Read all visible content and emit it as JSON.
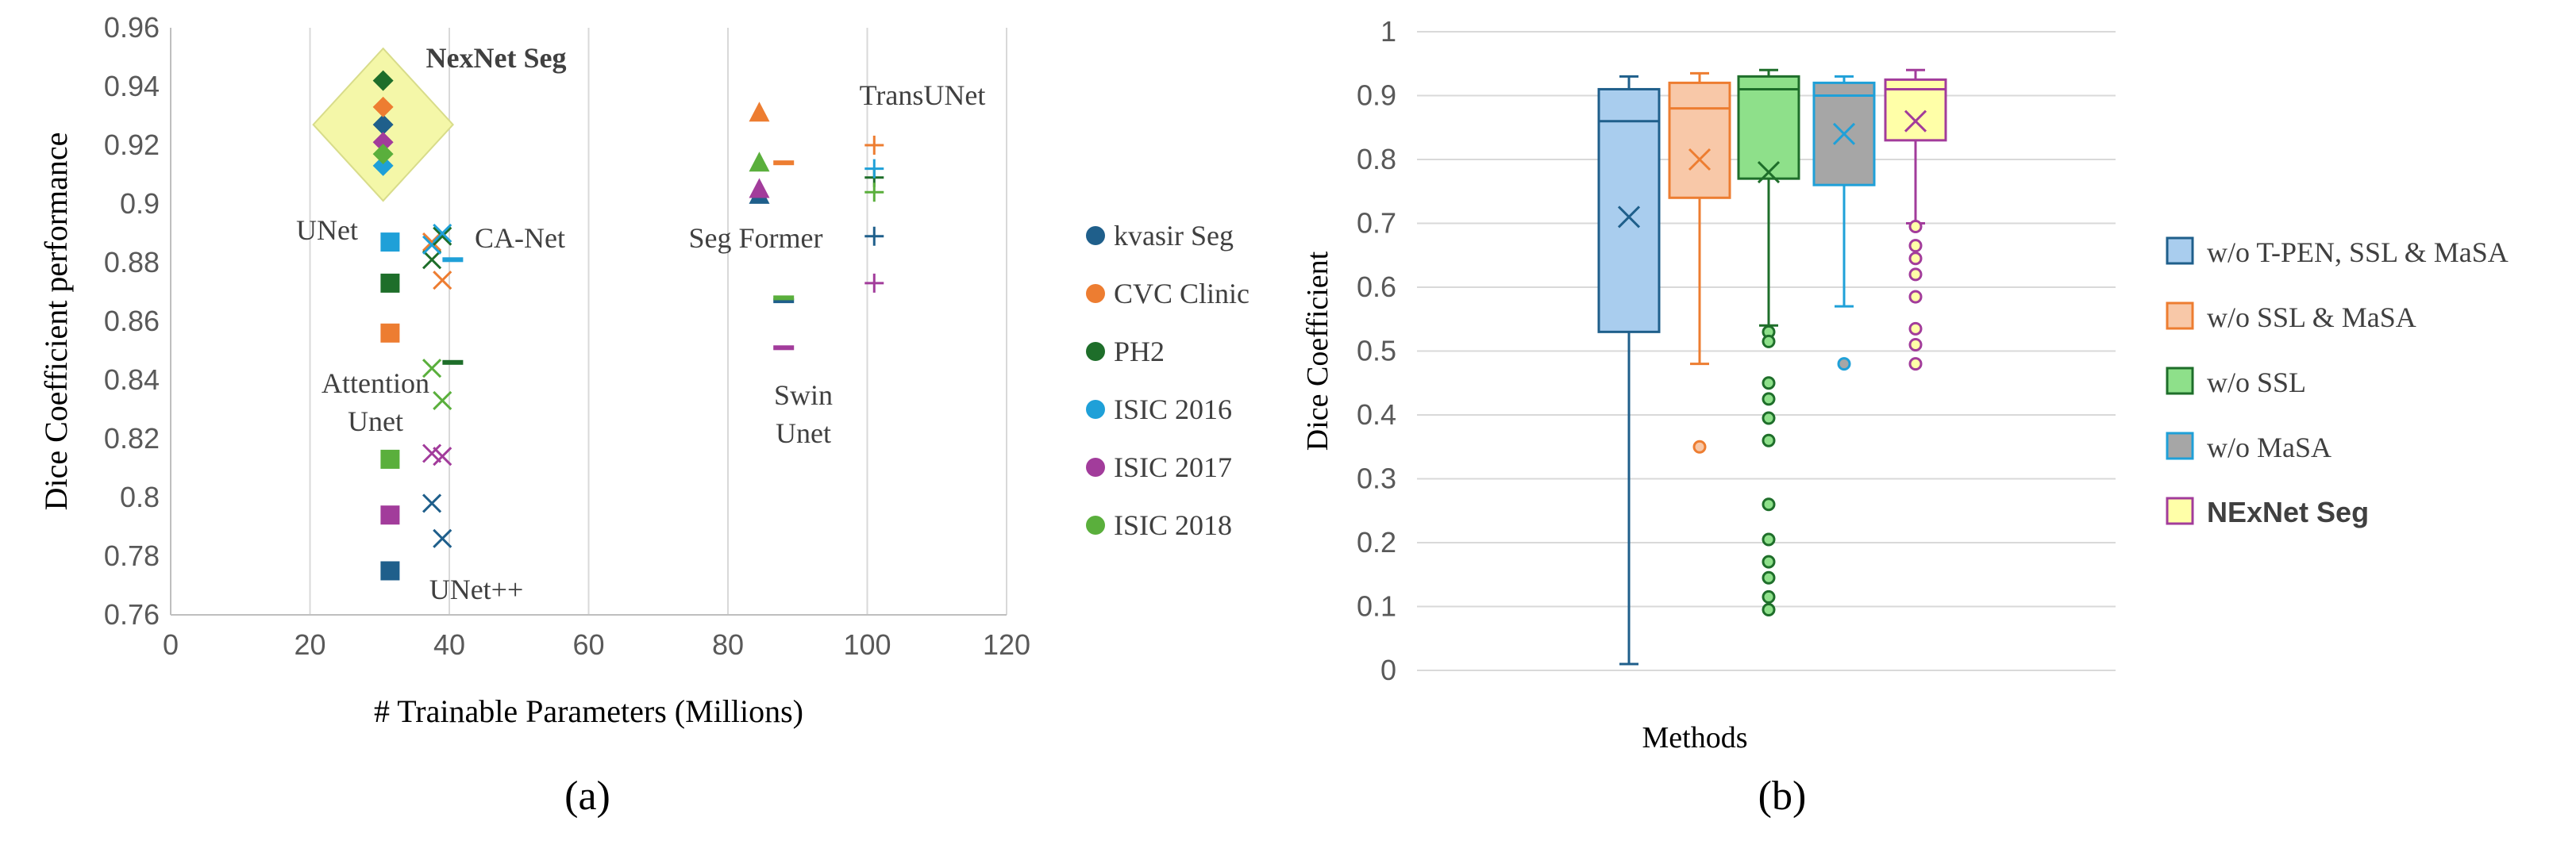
{
  "panel_labels": {
    "a": "(a)",
    "b": "(b)"
  },
  "colors": {
    "kvasir": "#1f5f8b",
    "cvc": "#ed7d31",
    "ph2": "#1e6e2a",
    "isic2016": "#1fa0d8",
    "isic2017": "#a23c9b",
    "isic2018": "#5aaf3c",
    "grid": "#d9d9d9",
    "axis": "#bfbfbf",
    "highlight_fill": "#f4f7a8",
    "box_blue": "#a9cdee",
    "box_orange": "#f8c8a8",
    "box_green": "#8ee08a",
    "box_gray": "#a6a6a6",
    "box_yellow": "#ffffa8"
  },
  "chart_data": [
    {
      "type": "scatter",
      "title": "",
      "xlabel": "# Trainable Parameters (Millions)",
      "ylabel": "Dice Coefficient performance",
      "xlim": [
        0,
        120
      ],
      "ylim": [
        0.76,
        0.96
      ],
      "xticks": [
        "0",
        "20",
        "40",
        "60",
        "80",
        "100",
        "120"
      ],
      "yticks": [
        "0.76",
        "0.78",
        "0.8",
        "0.82",
        "0.84",
        "0.86",
        "0.88",
        "0.9",
        "0.92",
        "0.94",
        "0.96"
      ],
      "grid": "vertical",
      "legend": "right",
      "series": [
        {
          "name": "kvasir Seg",
          "color_key": "kvasir"
        },
        {
          "name": "CVC Clinic",
          "color_key": "cvc"
        },
        {
          "name": "PH2",
          "color_key": "ph2"
        },
        {
          "name": "ISIC 2016",
          "color_key": "isic2016"
        },
        {
          "name": "ISIC 2017",
          "color_key": "isic2017"
        },
        {
          "name": "ISIC 2018",
          "color_key": "isic2018"
        }
      ],
      "models": [
        {
          "label": "NexNet Seg",
          "bold": true,
          "marker": "diamond",
          "x": 30.5,
          "y": {
            "kvasir": 0.927,
            "cvc": 0.933,
            "ph2": 0.942,
            "isic2016": 0.913,
            "isic2017": 0.921,
            "isic2018": 0.917
          }
        },
        {
          "label": "UNet",
          "marker": "square",
          "x": 31.5,
          "y": {
            "kvasir": 0.775,
            "cvc": 0.856,
            "ph2": 0.873,
            "isic2016": 0.887,
            "isic2017": 0.794,
            "isic2018": 0.813
          }
        },
        {
          "label": "UNet++",
          "marker": "x",
          "x": 37.5,
          "y": {
            "kvasir": 0.798,
            "cvc": 0.887,
            "ph2": 0.881,
            "isic2016": 0.886,
            "isic2017": 0.815,
            "isic2018": 0.844
          }
        },
        {
          "label": "Attention Unet",
          "marker": "x",
          "x": 39,
          "y": {
            "kvasir": 0.786,
            "cvc": 0.874,
            "ph2": 0.889,
            "isic2016": 0.89,
            "isic2017": 0.814,
            "isic2018": 0.833
          }
        },
        {
          "label": "CA-Net",
          "marker": "dash",
          "x": 40.5,
          "y": {
            "ph2": 0.846,
            "isic2016": 0.881
          }
        },
        {
          "label": "Seg Former",
          "marker": "triangle",
          "x": 84.5,
          "y": {
            "kvasir": 0.903,
            "cvc": 0.931,
            "isic2017": 0.905,
            "isic2018": 0.914
          }
        },
        {
          "label": "Swin Unet",
          "marker": "dash",
          "x": 88,
          "y": {
            "kvasir": 0.867,
            "cvc": 0.914,
            "isic2017": 0.851,
            "isic2018": 0.868
          }
        },
        {
          "label": "TransUNet",
          "marker": "plus",
          "x": 101,
          "y": {
            "kvasir": 0.889,
            "cvc": 0.92,
            "ph2": 0.909,
            "isic2016": 0.912,
            "isic2017": 0.873,
            "isic2018": 0.904
          }
        }
      ],
      "annotations": [
        "NexNet Seg",
        "TransUNet",
        "UNet",
        "CA-Net",
        "Seg Former",
        "Attention Unet",
        "Swin Unet",
        "UNet++"
      ]
    },
    {
      "type": "box",
      "title": "",
      "xlabel": "Methods",
      "ylabel": "Dice Coefficient",
      "ylim": [
        0,
        1
      ],
      "yticks": [
        "0",
        "0.1",
        "0.2",
        "0.3",
        "0.4",
        "0.5",
        "0.6",
        "0.7",
        "0.8",
        "0.9",
        "1"
      ],
      "grid": "horizontal",
      "legend": "right",
      "series": [
        {
          "name": "w/o T-PEN, SSL & MaSA",
          "bold": false,
          "fill_key": "box_blue",
          "stroke_key": "kvasir",
          "min": 0.01,
          "q1": 0.53,
          "median": 0.86,
          "q3": 0.91,
          "max": 0.93,
          "mean": 0.71,
          "outliers": []
        },
        {
          "name": "w/o SSL & MaSA",
          "bold": false,
          "fill_key": "box_orange",
          "stroke_key": "cvc",
          "min": 0.48,
          "q1": 0.74,
          "median": 0.88,
          "q3": 0.92,
          "max": 0.935,
          "mean": 0.8,
          "outliers": [
            0.35
          ]
        },
        {
          "name": "w/o SSL",
          "bold": false,
          "fill_key": "box_green",
          "stroke_key": "ph2",
          "min": 0.54,
          "q1": 0.77,
          "median": 0.91,
          "q3": 0.93,
          "max": 0.94,
          "mean": 0.78,
          "outliers": [
            0.53,
            0.515,
            0.45,
            0.425,
            0.395,
            0.36,
            0.26,
            0.205,
            0.17,
            0.145,
            0.115,
            0.095
          ]
        },
        {
          "name": "w/o MaSA",
          "bold": false,
          "fill_key": "box_gray",
          "stroke_key": "isic2016",
          "min": 0.57,
          "q1": 0.76,
          "median": 0.9,
          "q3": 0.92,
          "max": 0.93,
          "mean": 0.84,
          "outliers": [
            0.48
          ]
        },
        {
          "name": "NExNet Seg",
          "bold": true,
          "fill_key": "box_yellow",
          "stroke_key": "isic2017",
          "min": 0.7,
          "q1": 0.83,
          "median": 0.91,
          "q3": 0.925,
          "max": 0.94,
          "mean": 0.86,
          "outliers": [
            0.695,
            0.665,
            0.645,
            0.62,
            0.585,
            0.535,
            0.51,
            0.48
          ]
        }
      ]
    }
  ]
}
